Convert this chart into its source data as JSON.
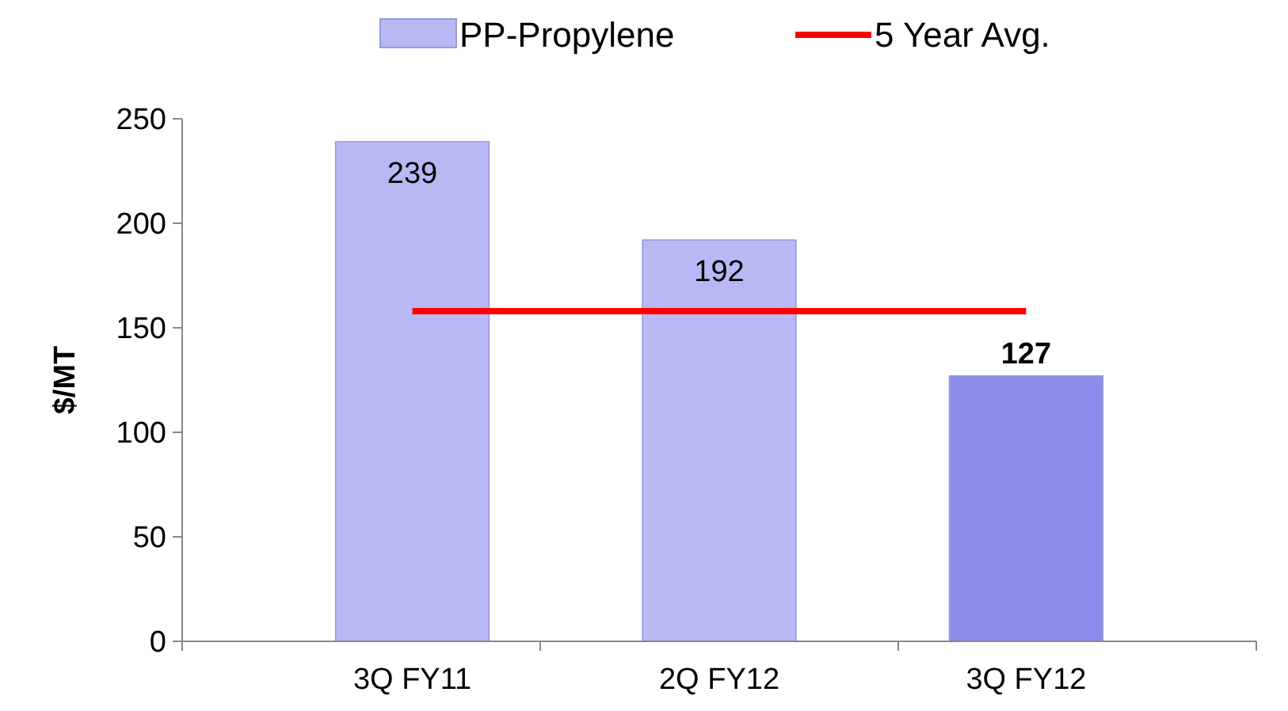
{
  "chart_data": {
    "type": "bar",
    "ylabel": "$/MT",
    "categories": [
      "3Q FY11",
      "2Q FY12",
      "3Q FY12"
    ],
    "series": [
      {
        "name": "PP-Propylene",
        "color": "#b8b8f5",
        "colors": [
          "#b8b8f5",
          "#b8b8f5",
          "#8c8cec"
        ],
        "values": [
          239,
          192,
          127
        ],
        "value_labels": [
          "239",
          "192",
          "127"
        ]
      },
      {
        "name": "5 Year Avg.",
        "type": "line",
        "color": "#ff0000",
        "values": [
          158,
          158,
          158
        ]
      }
    ],
    "ylim": [
      0,
      250
    ],
    "yticks": [
      0,
      50,
      100,
      150,
      200,
      250
    ],
    "legend": "top",
    "grid": false,
    "marker": "none",
    "line_style": "solid"
  }
}
